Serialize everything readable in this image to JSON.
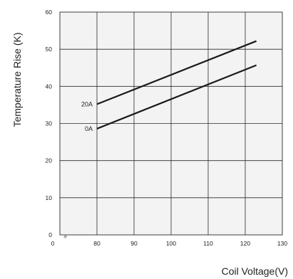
{
  "chart_data": {
    "type": "line",
    "title": "",
    "xlabel": "Coil Voltage(V)",
    "ylabel": "Temperature Rise (K)",
    "xlim": [
      70,
      130
    ],
    "ylim": [
      0,
      60
    ],
    "x_ticks": [
      "0",
      "80",
      "90",
      "100",
      "110",
      "120",
      "130"
    ],
    "y_ticks": [
      "0",
      "10",
      "20",
      "30",
      "40",
      "50",
      "60"
    ],
    "axis_break": "≈",
    "grid": true,
    "series": [
      {
        "name": "20A",
        "x": [
          80,
          123
        ],
        "y": [
          35.2,
          52.2
        ]
      },
      {
        "name": "0A",
        "x": [
          80,
          123
        ],
        "y": [
          28.6,
          45.7
        ]
      }
    ],
    "colors": {
      "line": "#1a1a1a",
      "plot_background": "#f3f3f3",
      "grid": "#2a2a2a"
    }
  }
}
